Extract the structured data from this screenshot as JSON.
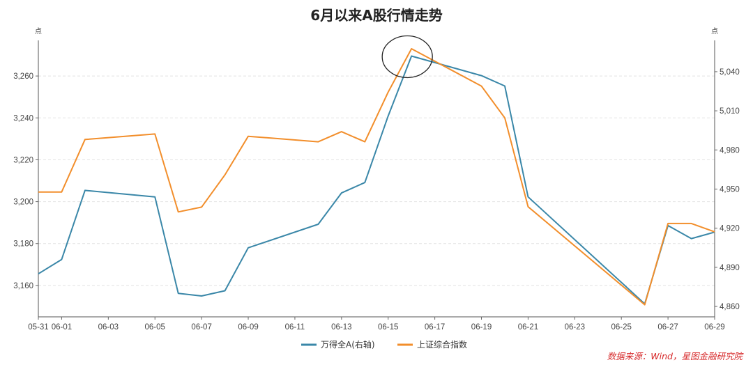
{
  "chart_data": {
    "type": "line",
    "title": "6月以来A股行情走势",
    "left_unit": "点",
    "right_unit": "点",
    "categories": [
      "05-31",
      "06-01",
      "06-02",
      "06-05",
      "06-06",
      "06-07",
      "06-08",
      "06-09",
      "06-12",
      "06-13",
      "06-14",
      "06-15",
      "06-16",
      "06-19",
      "06-20",
      "06-21",
      "06-26",
      "06-27",
      "06-28",
      "06-29"
    ],
    "x_tick_labels": [
      "05-31",
      "06-01",
      "06-03",
      "06-05",
      "06-07",
      "06-09",
      "06-11",
      "06-13",
      "06-15",
      "06-17",
      "06-19",
      "06-21",
      "06-23",
      "06-25",
      "06-27",
      "06-29"
    ],
    "x_range": [
      "05-31",
      "06-29"
    ],
    "left_axis": {
      "ylim": [
        3145,
        3277
      ],
      "ticks": [
        "3,160",
        "3,180",
        "3,200",
        "3,220",
        "3,240",
        "3,260"
      ],
      "tick_values": [
        3160,
        3180,
        3200,
        3220,
        3240,
        3260
      ]
    },
    "right_axis": {
      "ylim": [
        4852,
        5064
      ],
      "ticks": [
        "4,860",
        "4,890",
        "4,920",
        "4,950",
        "4,980",
        "5,010",
        "5,040"
      ],
      "tick_values": [
        4860,
        4890,
        4920,
        4950,
        4980,
        5010,
        5040
      ]
    },
    "series": [
      {
        "name": "万得全A(右轴)",
        "axis": "right",
        "color": "#3a87a8",
        "values": [
          4885,
          4896,
          4949,
          4944,
          4870,
          4868,
          4872,
          4905,
          4923,
          4947,
          4955,
          5006,
          5052,
          5037,
          5029,
          4944,
          4862,
          4922,
          4912,
          4917
        ]
      },
      {
        "name": "上证综合指数",
        "axis": "left",
        "color": "#f28e2b",
        "values": [
          3204.6,
          3204.6,
          3229.7,
          3232.3,
          3195.1,
          3197.4,
          3212.8,
          3231.2,
          3228.6,
          3233.4,
          3228.6,
          3252.3,
          3273.0,
          3255.2,
          3240.0,
          3197.6,
          3150.8,
          3189.6,
          3189.6,
          3185.6
        ]
      }
    ],
    "annotation": {
      "type": "circle",
      "target": "06-16"
    },
    "grid": "horizontal dashed",
    "legend_position": "bottom"
  },
  "source": "数据来源：Wind，星图金融研究院"
}
